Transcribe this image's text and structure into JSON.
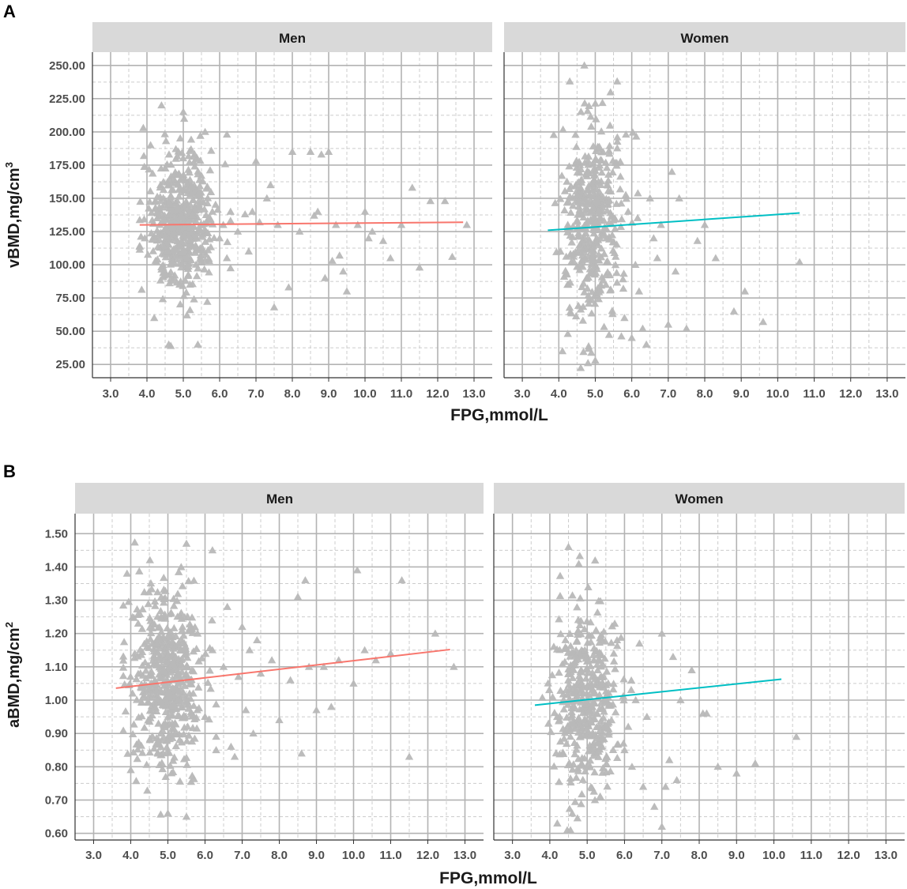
{
  "figure": {
    "panel_labels": [
      "A",
      "B"
    ]
  },
  "chart_data": [
    {
      "type": "scatter",
      "panel_label": "A",
      "ylabel": "vBMD,mg/cm",
      "ylabel_sup": "3",
      "xlabel": "FPG,mmol/L",
      "xlim": [
        2.5,
        13.5
      ],
      "ylim": [
        15,
        260
      ],
      "x_ticks": [
        3,
        4,
        5,
        6,
        7,
        8,
        9,
        10,
        11,
        12,
        13
      ],
      "x_tick_labels": [
        "3.0",
        "4.0",
        "5.0",
        "6.0",
        "7.0",
        "8.0",
        "9.0",
        "10.0",
        "11.0",
        "12.0",
        "13.0"
      ],
      "y_ticks": [
        25,
        50,
        75,
        100,
        125,
        150,
        175,
        200,
        225,
        250
      ],
      "y_tick_labels": [
        "25.00",
        "50.00",
        "75.00",
        "100.00",
        "125.00",
        "150.00",
        "175.00",
        "200.00",
        "225.00",
        "250.00"
      ],
      "marker_color": "#b8b8b8",
      "facets": [
        {
          "name": "Men",
          "fit_line": {
            "x": [
              3.8,
              12.7
            ],
            "y": [
              130,
              132
            ],
            "color": "#f8766d"
          },
          "cluster": {
            "x_mean": 4.95,
            "x_sd": 0.42,
            "y_mean": 130,
            "y_sd": 27,
            "n": 500
          },
          "tail_points": [
            [
              5.8,
              140
            ],
            [
              6.0,
              120
            ],
            [
              6.1,
              130
            ],
            [
              6.2,
              105
            ],
            [
              6.3,
              140
            ],
            [
              6.5,
              125
            ],
            [
              6.7,
              138
            ],
            [
              6.8,
              110
            ],
            [
              6.9,
              140
            ],
            [
              7.0,
              178
            ],
            [
              7.1,
              132
            ],
            [
              7.3,
              150
            ],
            [
              7.4,
              160
            ],
            [
              7.5,
              68
            ],
            [
              7.6,
              130
            ],
            [
              7.9,
              83
            ],
            [
              8.0,
              185
            ],
            [
              8.2,
              125
            ],
            [
              8.5,
              185
            ],
            [
              8.6,
              137
            ],
            [
              8.7,
              140
            ],
            [
              8.8,
              183
            ],
            [
              8.9,
              90
            ],
            [
              9.0,
              185
            ],
            [
              9.1,
              103
            ],
            [
              9.2,
              130
            ],
            [
              9.3,
              107
            ],
            [
              9.4,
              95
            ],
            [
              9.5,
              80
            ],
            [
              9.8,
              130
            ],
            [
              10.0,
              140
            ],
            [
              10.1,
              120
            ],
            [
              10.2,
              125
            ],
            [
              10.5,
              118
            ],
            [
              10.7,
              105
            ],
            [
              11.0,
              130
            ],
            [
              11.3,
              158
            ],
            [
              11.5,
              98
            ],
            [
              11.8,
              148
            ],
            [
              12.2,
              148
            ],
            [
              12.4,
              106
            ],
            [
              12.8,
              130
            ],
            [
              4.4,
              220
            ],
            [
              5.0,
              215
            ],
            [
              4.1,
              190
            ],
            [
              3.9,
              203
            ],
            [
              4.6,
              40
            ],
            [
              5.4,
              40
            ],
            [
              6.2,
              198
            ],
            [
              5.6,
              200
            ],
            [
              4.2,
              60
            ],
            [
              5.1,
              62
            ]
          ]
        },
        {
          "name": "Women",
          "fit_line": {
            "x": [
              3.7,
              10.6
            ],
            "y": [
              126,
              139
            ],
            "color": "#00bfc4"
          },
          "cluster": {
            "x_mean": 4.95,
            "x_sd": 0.42,
            "y_mean": 132,
            "y_sd": 36,
            "n": 420
          },
          "tail_points": [
            [
              5.8,
              60
            ],
            [
              5.9,
              140
            ],
            [
              6.0,
              45
            ],
            [
              6.1,
              100
            ],
            [
              6.2,
              80
            ],
            [
              6.3,
              52
            ],
            [
              6.4,
              40
            ],
            [
              6.5,
              150
            ],
            [
              6.6,
              120
            ],
            [
              6.7,
              105
            ],
            [
              6.8,
              130
            ],
            [
              7.0,
              55
            ],
            [
              7.1,
              170
            ],
            [
              7.2,
              95
            ],
            [
              7.3,
              150
            ],
            [
              7.5,
              52
            ],
            [
              7.8,
              118
            ],
            [
              8.0,
              130
            ],
            [
              8.3,
              105
            ],
            [
              8.8,
              65
            ],
            [
              9.1,
              80
            ],
            [
              9.6,
              57
            ],
            [
              10.6,
              102
            ],
            [
              4.3,
              238
            ],
            [
              4.7,
              250
            ],
            [
              5.6,
              238
            ],
            [
              4.1,
              35
            ],
            [
              5.0,
              28
            ],
            [
              4.8,
              26
            ]
          ]
        }
      ]
    },
    {
      "type": "scatter",
      "panel_label": "B",
      "ylabel": "aBMD,mg/cm",
      "ylabel_sup": "2",
      "xlabel": "FPG,mmol/L",
      "xlim": [
        2.5,
        13.5
      ],
      "ylim": [
        0.58,
        1.56
      ],
      "x_ticks": [
        3,
        4,
        5,
        6,
        7,
        8,
        9,
        10,
        11,
        12,
        13
      ],
      "x_tick_labels": [
        "3.0",
        "4.0",
        "5.0",
        "6.0",
        "7.0",
        "8.0",
        "9.0",
        "10.0",
        "11.0",
        "12.0",
        "13.0"
      ],
      "y_ticks": [
        0.6,
        0.7,
        0.8,
        0.9,
        1.0,
        1.1,
        1.2,
        1.3,
        1.4,
        1.5
      ],
      "y_tick_labels": [
        "0.60",
        "0.70",
        "0.80",
        "0.90",
        "1.00",
        "1.10",
        "1.20",
        "1.30",
        "1.40",
        "1.50"
      ],
      "marker_color": "#b8b8b8",
      "facets": [
        {
          "name": "Men",
          "fit_line": {
            "x": [
              3.6,
              12.6
            ],
            "y": [
              1.036,
              1.152
            ],
            "color": "#f8766d"
          },
          "cluster": {
            "x_mean": 4.95,
            "x_sd": 0.45,
            "y_mean": 1.07,
            "y_sd": 0.13,
            "n": 520
          },
          "tail_points": [
            [
              5.8,
              1.2
            ],
            [
              6.0,
              0.95
            ],
            [
              6.2,
              1.15
            ],
            [
              6.3,
              0.85
            ],
            [
              6.5,
              1.1
            ],
            [
              6.6,
              1.28
            ],
            [
              6.7,
              0.86
            ],
            [
              6.8,
              0.83
            ],
            [
              6.9,
              1.07
            ],
            [
              7.0,
              1.22
            ],
            [
              7.1,
              0.97
            ],
            [
              7.2,
              1.15
            ],
            [
              7.3,
              0.9
            ],
            [
              7.4,
              1.18
            ],
            [
              7.5,
              1.08
            ],
            [
              7.8,
              1.12
            ],
            [
              8.0,
              0.94
            ],
            [
              8.3,
              1.06
            ],
            [
              8.5,
              1.31
            ],
            [
              8.6,
              0.84
            ],
            [
              8.7,
              1.36
            ],
            [
              8.8,
              1.1
            ],
            [
              9.0,
              0.97
            ],
            [
              9.2,
              1.1
            ],
            [
              9.4,
              0.98
            ],
            [
              9.6,
              1.12
            ],
            [
              10.0,
              1.05
            ],
            [
              10.1,
              1.39
            ],
            [
              10.3,
              1.15
            ],
            [
              10.6,
              1.12
            ],
            [
              11.0,
              1.14
            ],
            [
              11.3,
              1.36
            ],
            [
              11.5,
              0.83
            ],
            [
              12.2,
              1.2
            ],
            [
              12.7,
              1.1
            ],
            [
              4.0,
              0.79
            ],
            [
              5.0,
              0.66
            ],
            [
              5.5,
              0.65
            ],
            [
              5.5,
              1.47
            ],
            [
              6.2,
              1.45
            ],
            [
              4.2,
              1.23
            ],
            [
              3.9,
              1.38
            ]
          ]
        },
        {
          "name": "Women",
          "fit_line": {
            "x": [
              3.6,
              10.2
            ],
            "y": [
              0.985,
              1.063
            ],
            "color": "#00bfc4"
          },
          "cluster": {
            "x_mean": 4.95,
            "x_sd": 0.42,
            "y_mean": 0.99,
            "y_sd": 0.15,
            "n": 420
          },
          "tail_points": [
            [
              5.8,
              1.18
            ],
            [
              6.0,
              0.85
            ],
            [
              6.1,
              0.92
            ],
            [
              6.2,
              0.8
            ],
            [
              6.3,
              1.0
            ],
            [
              6.4,
              1.17
            ],
            [
              6.5,
              0.74
            ],
            [
              6.6,
              0.95
            ],
            [
              6.8,
              0.68
            ],
            [
              7.0,
              1.2
            ],
            [
              7.1,
              0.74
            ],
            [
              7.2,
              0.82
            ],
            [
              7.3,
              1.13
            ],
            [
              7.4,
              0.76
            ],
            [
              7.5,
              1.0
            ],
            [
              7.8,
              1.09
            ],
            [
              8.1,
              0.96
            ],
            [
              8.2,
              0.96
            ],
            [
              8.5,
              0.8
            ],
            [
              9.0,
              0.78
            ],
            [
              9.5,
              0.81
            ],
            [
              10.6,
              0.89
            ],
            [
              7.0,
              0.62
            ],
            [
              4.5,
              1.46
            ],
            [
              4.2,
              0.63
            ]
          ]
        }
      ]
    }
  ]
}
